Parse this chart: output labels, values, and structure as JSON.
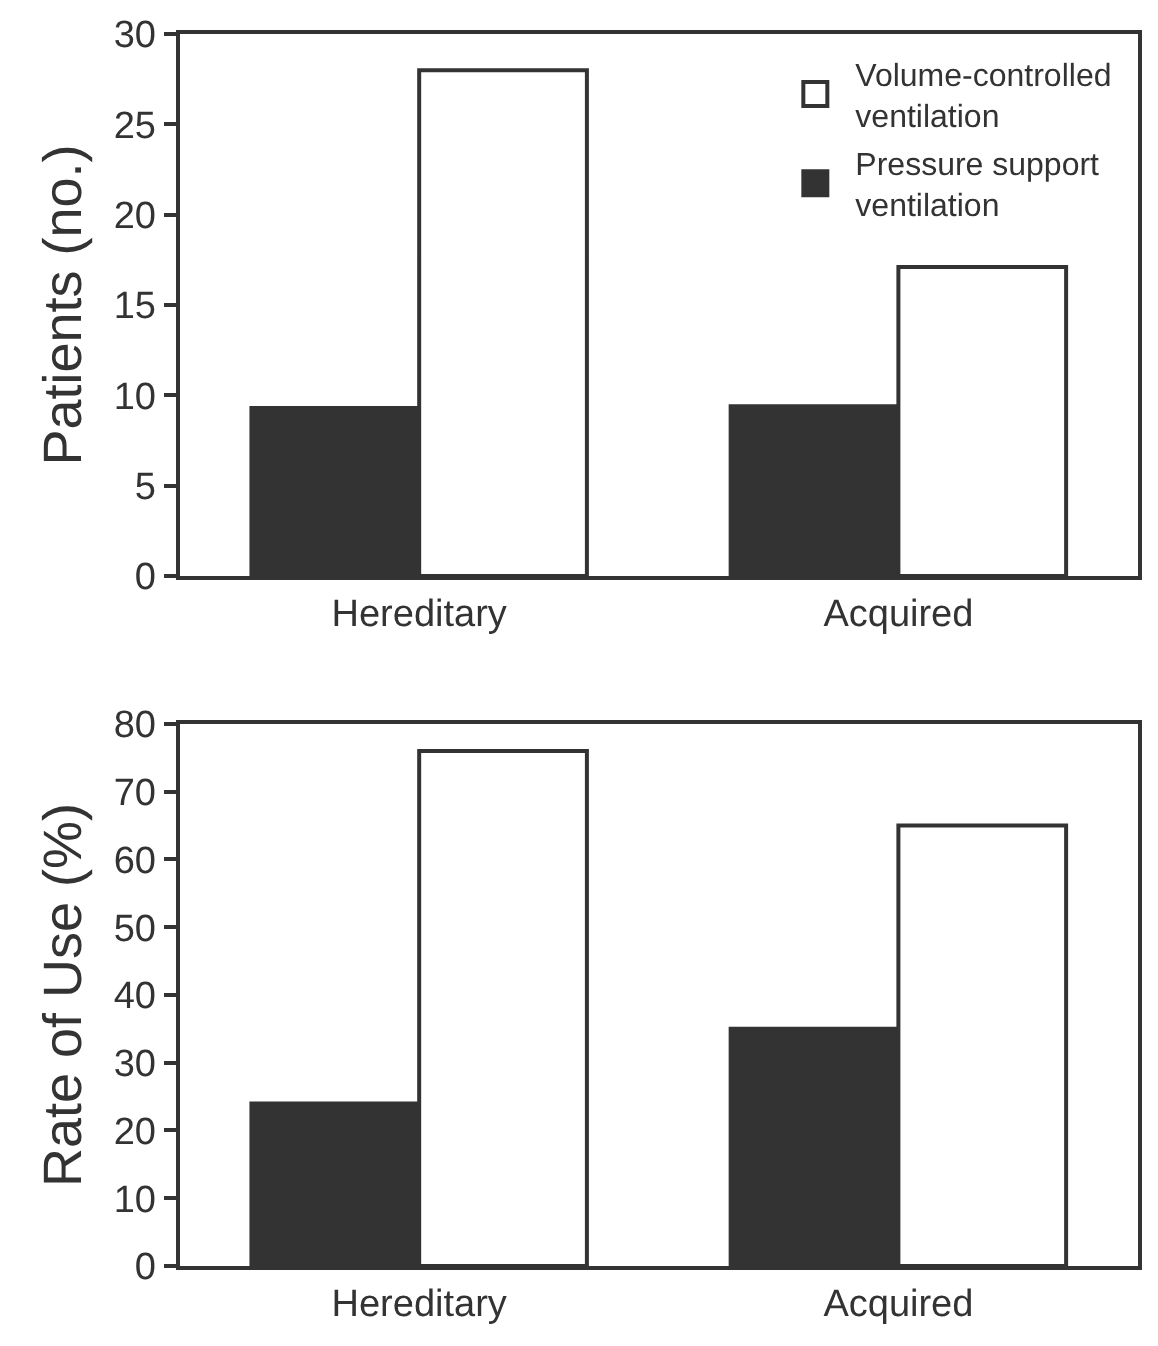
{
  "chart_data": [
    {
      "type": "bar",
      "categories": [
        "Hereditary",
        "Acquired"
      ],
      "ylabel": "Patients (no.)",
      "ylim": [
        0,
        30
      ],
      "yticks": [
        0,
        5,
        10,
        15,
        20,
        25,
        30
      ],
      "legend": "top right",
      "series": [
        {
          "name": "Pressure support ventilation",
          "color": "#333333",
          "values": [
            9.3,
            9.4
          ]
        },
        {
          "name": "Volume-controlled ventilation",
          "color": "#ffffff",
          "values": [
            28,
            17.1
          ]
        }
      ]
    },
    {
      "type": "bar",
      "categories": [
        "Hereditary",
        "Acquired"
      ],
      "ylabel": "Rate of Use (%)",
      "ylim": [
        0,
        80
      ],
      "yticks": [
        0,
        10,
        20,
        30,
        40,
        50,
        60,
        70,
        80
      ],
      "legend": false,
      "series": [
        {
          "color": "#333333",
          "values": [
            24,
            35
          ]
        },
        {
          "color": "#ffffff",
          "values": [
            76,
            65
          ]
        }
      ]
    }
  ]
}
